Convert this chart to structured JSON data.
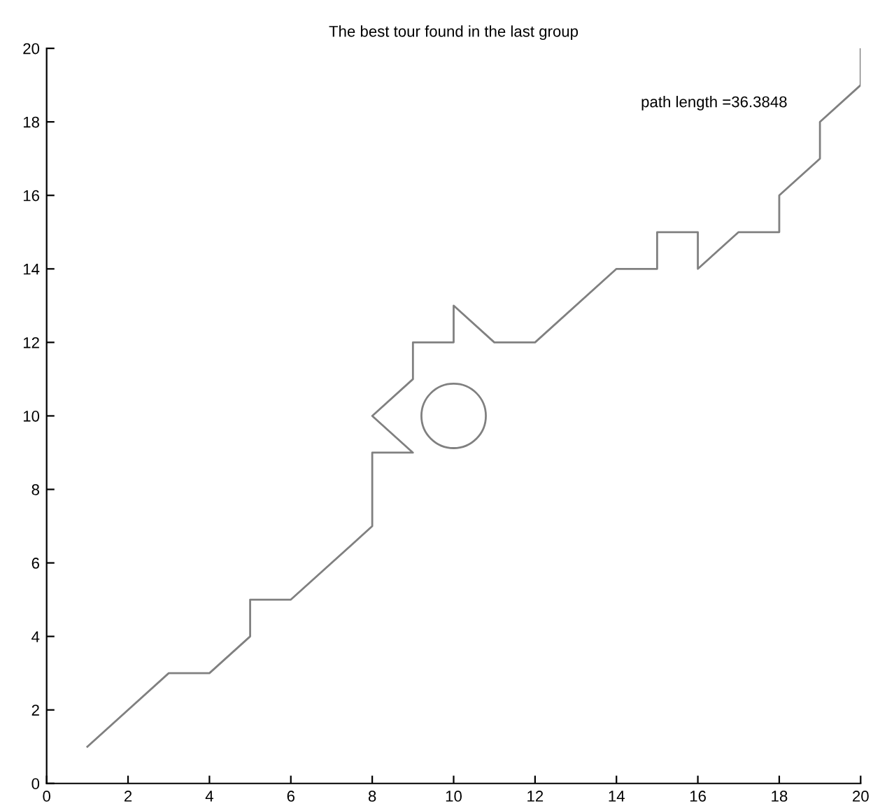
{
  "chart_data": {
    "type": "line",
    "title": "The best tour found in the last group",
    "annotations": [
      "path length =36.3848"
    ],
    "series": [
      {
        "color": "#808080",
        "marker": "none",
        "line_style": "solid",
        "x": [
          1,
          3,
          4,
          5,
          5,
          6,
          8,
          8,
          9,
          8,
          9,
          9,
          10,
          10,
          11,
          12,
          14,
          15,
          15,
          16,
          16,
          17,
          18,
          18,
          19,
          19,
          20,
          20
        ],
        "values": [
          1,
          3,
          3,
          4,
          5,
          5,
          7,
          9,
          9,
          10,
          11,
          12,
          12,
          13,
          12,
          12,
          14,
          14,
          15,
          15,
          14,
          15,
          15,
          16,
          17,
          18,
          19,
          20
        ]
      },
      {
        "type": "scatter",
        "color": "#808080",
        "marker": "circle",
        "x": [
          10
        ],
        "values": [
          10
        ]
      }
    ],
    "xlim": [
      0,
      20
    ],
    "ylim": [
      0,
      20
    ],
    "xticks": [
      0,
      2,
      4,
      6,
      8,
      10,
      12,
      14,
      16,
      18,
      20
    ],
    "yticks": [
      0,
      2,
      4,
      6,
      8,
      10,
      12,
      14,
      16,
      18,
      20
    ],
    "grid": false,
    "legend": false
  }
}
